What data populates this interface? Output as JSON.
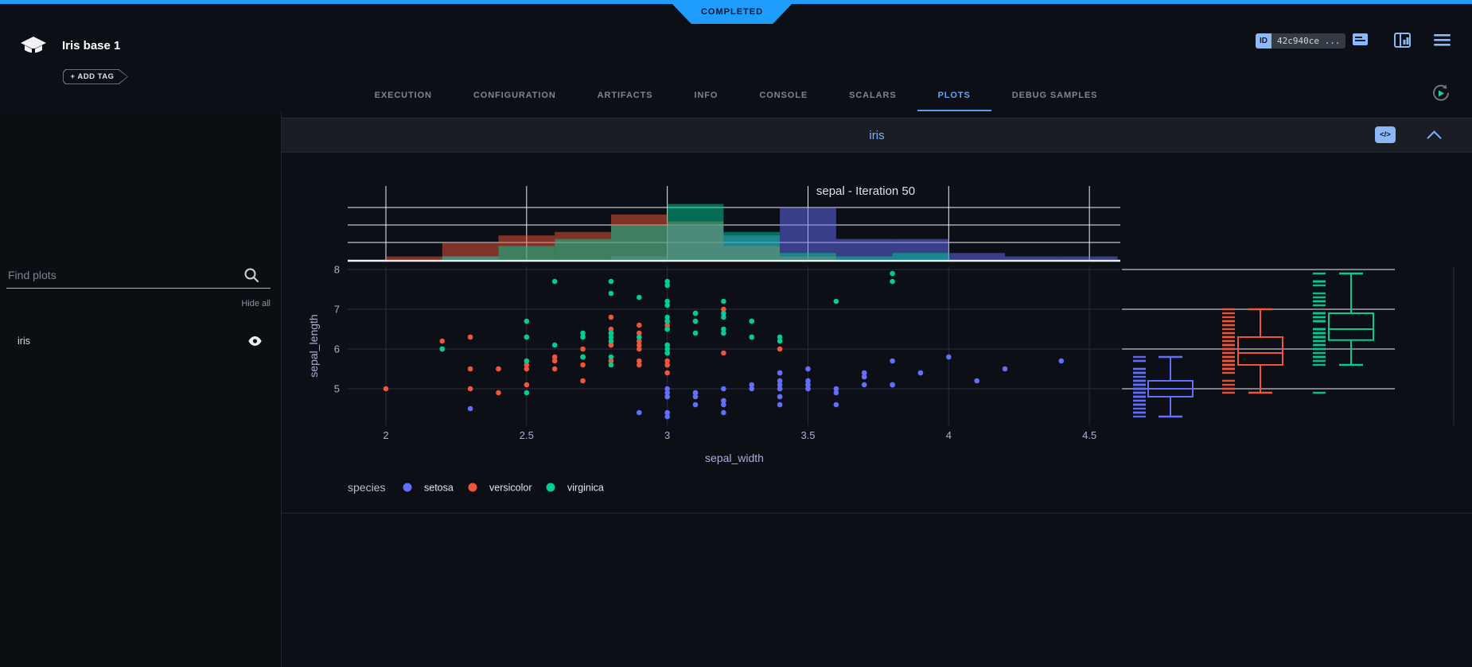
{
  "status_banner": {
    "label": "COMPLETED",
    "color": "#1e9dfc"
  },
  "header": {
    "title": "Iris base 1",
    "add_tag_label": "+ ADD TAG",
    "id_label": "ID",
    "id_value": "42c940ce ...",
    "icons": [
      "notes-icon",
      "panel-icon",
      "menu-icon"
    ]
  },
  "tabs": {
    "active": "PLOTS",
    "items": [
      {
        "label": "EXECUTION"
      },
      {
        "label": "CONFIGURATION"
      },
      {
        "label": "ARTIFACTS"
      },
      {
        "label": "INFO"
      },
      {
        "label": "CONSOLE"
      },
      {
        "label": "SCALARS"
      },
      {
        "label": "PLOTS"
      },
      {
        "label": "DEBUG SAMPLES"
      }
    ]
  },
  "sidebar": {
    "search_placeholder": "Find plots",
    "hide_all_label": "Hide all",
    "items": [
      {
        "label": "iris"
      }
    ]
  },
  "plot_card": {
    "title": "iris",
    "code_icon_label": "</>"
  },
  "chart_data": {
    "type": "scatter",
    "title": "sepal - Iteration 50",
    "xlabel": "sepal_width",
    "ylabel": "sepal_length",
    "legend_title": "species",
    "x_ticks": [
      2,
      2.5,
      3,
      3.5,
      4,
      4.5
    ],
    "y_ticks": [
      5,
      6,
      7,
      8
    ],
    "x_range": [
      1.86,
      4.61
    ],
    "y_range": [
      4.08,
      8.08
    ],
    "marginal_top": "histogram",
    "marginal_right": "box",
    "hist_bin_width": 0.2,
    "hist_grid_counts": [
      5,
      10,
      15
    ],
    "grid": true,
    "legend_position": "bottom",
    "colors": {
      "setosa": "#636efa",
      "versicolor": "#ef553b",
      "virginica": "#00cc96"
    },
    "series": [
      {
        "name": "setosa",
        "color": "#636efa",
        "x": [
          3.5,
          3.0,
          3.2,
          3.1,
          3.6,
          3.9,
          3.4,
          3.4,
          2.9,
          3.1,
          3.7,
          3.4,
          3.0,
          3.0,
          4.0,
          4.4,
          3.9,
          3.5,
          3.8,
          3.8,
          3.4,
          3.7,
          3.6,
          3.3,
          3.4,
          3.0,
          3.4,
          3.5,
          3.4,
          3.2,
          3.1,
          3.4,
          4.1,
          4.2,
          3.1,
          3.2,
          3.5,
          3.6,
          3.0,
          3.4,
          3.5,
          2.3,
          3.2,
          3.5,
          3.8,
          3.0,
          3.8,
          3.2,
          3.7,
          3.3
        ],
        "y": [
          5.1,
          4.9,
          4.7,
          4.6,
          5.0,
          5.4,
          4.6,
          5.0,
          4.4,
          4.9,
          5.4,
          4.8,
          4.8,
          4.3,
          5.8,
          5.7,
          5.4,
          5.1,
          5.7,
          5.1,
          5.4,
          5.1,
          4.6,
          5.1,
          4.8,
          5.0,
          5.0,
          5.2,
          5.2,
          4.7,
          4.8,
          5.4,
          5.2,
          5.5,
          4.9,
          5.0,
          5.5,
          4.9,
          4.4,
          5.1,
          5.0,
          4.5,
          4.4,
          5.0,
          5.1,
          4.8,
          5.1,
          4.6,
          5.3,
          5.0
        ]
      },
      {
        "name": "versicolor",
        "color": "#ef553b",
        "x": [
          3.2,
          3.2,
          3.1,
          2.3,
          2.8,
          2.8,
          3.3,
          2.4,
          2.9,
          2.7,
          2.0,
          3.0,
          2.2,
          2.9,
          2.9,
          3.1,
          3.0,
          2.7,
          2.2,
          2.5,
          3.2,
          2.8,
          2.5,
          2.8,
          2.9,
          3.0,
          2.8,
          3.0,
          2.9,
          2.6,
          2.4,
          2.4,
          2.7,
          2.7,
          3.0,
          3.4,
          3.1,
          2.3,
          3.0,
          2.5,
          2.6,
          3.0,
          2.6,
          2.3,
          2.7,
          3.0,
          2.9,
          2.9,
          2.5,
          2.8
        ],
        "y": [
          7.0,
          6.4,
          6.9,
          5.5,
          6.5,
          5.7,
          6.3,
          4.9,
          6.6,
          5.2,
          5.0,
          5.9,
          6.0,
          6.1,
          5.6,
          6.7,
          5.6,
          5.8,
          6.2,
          5.6,
          5.9,
          6.1,
          6.3,
          6.1,
          6.4,
          6.6,
          6.8,
          6.7,
          6.0,
          5.7,
          5.5,
          5.5,
          5.8,
          6.0,
          5.4,
          6.0,
          6.7,
          6.3,
          5.6,
          5.5,
          5.5,
          6.1,
          5.8,
          5.0,
          5.6,
          5.7,
          5.7,
          6.2,
          5.1,
          5.7
        ]
      },
      {
        "name": "virginica",
        "color": "#00cc96",
        "x": [
          3.3,
          2.7,
          3.0,
          2.9,
          3.0,
          3.0,
          2.5,
          2.9,
          2.5,
          3.6,
          3.2,
          2.7,
          3.0,
          2.5,
          2.8,
          3.2,
          3.0,
          3.8,
          2.6,
          2.2,
          3.2,
          2.8,
          2.8,
          2.7,
          3.3,
          3.2,
          2.8,
          3.0,
          2.8,
          3.0,
          2.8,
          3.8,
          2.8,
          2.8,
          2.6,
          3.0,
          3.4,
          3.1,
          3.0,
          3.1,
          3.1,
          3.1,
          2.7,
          3.2,
          3.3,
          3.0,
          2.5,
          3.0,
          3.4,
          3.0
        ],
        "y": [
          6.3,
          5.8,
          7.1,
          6.3,
          6.5,
          7.6,
          4.9,
          7.3,
          6.7,
          7.2,
          6.5,
          6.4,
          6.8,
          5.7,
          5.8,
          6.4,
          6.5,
          7.7,
          7.7,
          6.0,
          6.9,
          5.6,
          7.7,
          6.3,
          6.7,
          7.2,
          6.2,
          6.1,
          6.4,
          7.2,
          7.4,
          7.9,
          6.4,
          6.3,
          6.1,
          7.7,
          6.3,
          6.4,
          6.0,
          6.9,
          6.7,
          6.9,
          5.8,
          6.8,
          6.7,
          6.7,
          6.3,
          6.5,
          6.2,
          5.9
        ]
      }
    ]
  }
}
